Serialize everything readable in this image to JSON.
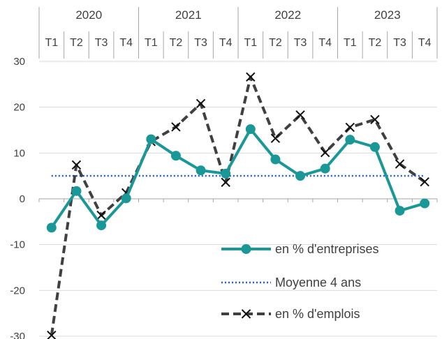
{
  "chart_data": {
    "type": "line",
    "title": "",
    "xlabel": "",
    "ylabel": "",
    "years": [
      "2020",
      "2021",
      "2022",
      "2023"
    ],
    "quarters": [
      "T1",
      "T2",
      "T3",
      "T4",
      "T1",
      "T2",
      "T3",
      "T4",
      "T1",
      "T2",
      "T3",
      "T4",
      "T1",
      "T2",
      "T3",
      "T4"
    ],
    "ylim": [
      -30,
      30
    ],
    "yticks": [
      30,
      20,
      10,
      0,
      -10,
      -20,
      -30
    ],
    "ytick_labels": [
      "30",
      "20",
      "10",
      "0",
      "-10",
      "-20",
      "-30"
    ],
    "grid": true,
    "legend_position": "bottom-right",
    "series": [
      {
        "name": "en % d'entreprises",
        "color": "#1a9797",
        "style": "solid-circle-markers",
        "values": [
          -6.3,
          1.7,
          -5.8,
          0.1,
          13.0,
          9.4,
          6.2,
          5.5,
          15.2,
          8.6,
          5.0,
          6.6,
          12.9,
          11.3,
          -2.6,
          -1.0
        ]
      },
      {
        "name": "Moyenne 4 ans",
        "color": "#1f5fd0",
        "style": "dotted",
        "values": [
          5,
          5,
          5,
          5,
          5,
          5,
          5,
          5,
          5,
          5,
          5,
          5,
          5,
          5,
          5,
          5
        ]
      },
      {
        "name": "en % d'emplois",
        "color": "#404040",
        "style": "dashed-x-markers",
        "values": [
          -29.8,
          7.4,
          -3.6,
          1.3,
          12.5,
          15.7,
          20.8,
          3.6,
          26.6,
          13.2,
          18.3,
          10.1,
          15.6,
          17.3,
          7.6,
          3.7
        ]
      }
    ]
  }
}
